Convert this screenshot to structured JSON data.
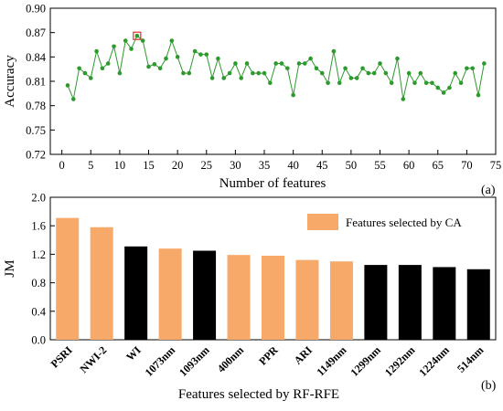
{
  "chart_data": [
    {
      "type": "line",
      "panel_label": "(a)",
      "xlabel": "Number of features",
      "ylabel": "Accuracy",
      "xlim": [
        -2,
        75
      ],
      "ylim": [
        0.72,
        0.9
      ],
      "xticks": [
        0,
        5,
        10,
        15,
        20,
        25,
        30,
        35,
        40,
        45,
        50,
        55,
        60,
        65,
        70,
        75
      ],
      "yticks": [
        "0.72",
        "0.75",
        "0.78",
        "0.81",
        "0.84",
        "0.87",
        "0.90"
      ],
      "grid": false,
      "line_color": "#2e9a2e",
      "highlight_color": "#e03030",
      "highlight": {
        "x": 13,
        "y": 0.866
      },
      "series": [
        {
          "x": [
            1,
            2,
            3,
            4,
            5,
            6,
            7,
            8,
            9,
            10,
            11,
            12,
            13,
            14,
            15,
            16,
            17,
            18,
            19,
            20,
            21,
            22,
            23,
            24,
            25,
            26,
            27,
            28,
            29,
            30,
            31,
            32,
            33,
            34,
            35,
            36,
            37,
            38,
            39,
            40,
            41,
            42,
            43,
            44,
            45,
            46,
            47,
            48,
            49,
            50,
            51,
            52,
            53,
            54,
            55,
            56,
            57,
            58,
            59,
            60,
            61,
            62,
            63,
            64,
            65,
            66,
            67,
            68,
            69,
            70,
            71,
            72,
            73
          ],
          "y": [
            0.805,
            0.788,
            0.826,
            0.82,
            0.814,
            0.847,
            0.826,
            0.832,
            0.853,
            0.82,
            0.86,
            0.85,
            0.866,
            0.86,
            0.828,
            0.831,
            0.826,
            0.838,
            0.86,
            0.84,
            0.82,
            0.82,
            0.847,
            0.843,
            0.843,
            0.814,
            0.838,
            0.814,
            0.82,
            0.832,
            0.814,
            0.832,
            0.82,
            0.82,
            0.82,
            0.808,
            0.832,
            0.832,
            0.826,
            0.793,
            0.832,
            0.832,
            0.838,
            0.826,
            0.82,
            0.808,
            0.847,
            0.808,
            0.826,
            0.814,
            0.814,
            0.826,
            0.82,
            0.82,
            0.832,
            0.82,
            0.808,
            0.838,
            0.788,
            0.82,
            0.808,
            0.82,
            0.808,
            0.808,
            0.802,
            0.796,
            0.802,
            0.82,
            0.808,
            0.826,
            0.826,
            0.793,
            0.832
          ]
        }
      ]
    },
    {
      "type": "bar",
      "panel_label": "(b)",
      "xlabel": "Features selected by RF-RFE",
      "ylabel": "JM",
      "ylim": [
        0.0,
        2.0
      ],
      "yticks": [
        "0.0",
        "0.4",
        "0.8",
        "1.2",
        "1.6",
        "2.0"
      ],
      "grid": false,
      "categories": [
        "PSRI",
        "NWI-2",
        "WI",
        "1073nm",
        "1093nm",
        "400nm",
        "PPR",
        "ARI",
        "1149nm",
        "1299nm",
        "1292nm",
        "1224nm",
        "514nm"
      ],
      "values": [
        1.71,
        1.58,
        1.31,
        1.28,
        1.25,
        1.19,
        1.18,
        1.12,
        1.1,
        1.05,
        1.05,
        1.02,
        0.99
      ],
      "selected_by_ca": [
        true,
        true,
        false,
        true,
        false,
        true,
        true,
        true,
        true,
        false,
        false,
        false,
        false
      ],
      "colors": {
        "selected": "#f7a96a",
        "other": "#000000"
      },
      "legend": {
        "label": "Features selected by CA",
        "position": "top-right"
      }
    }
  ]
}
